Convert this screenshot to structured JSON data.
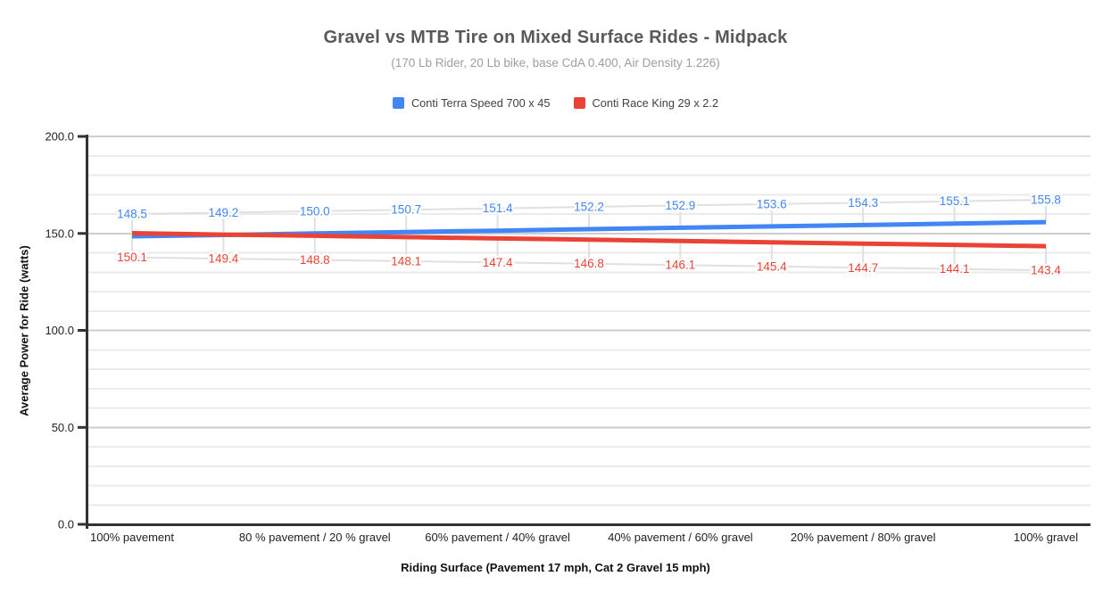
{
  "chart_data": {
    "type": "line",
    "title": "Gravel vs MTB Tire on Mixed Surface Rides - Midpack",
    "subtitle": "(170 Lb Rider, 20 Lb bike, base CdA 0.400, Air Density 1.226)",
    "xlabel": "Riding Surface (Pavement 17 mph, Cat 2 Gravel 15 mph)",
    "ylabel": "Average Power for Ride (watts)",
    "ylim": [
      0,
      200
    ],
    "y_tick_labels": [
      "0.0",
      "50.0",
      "100.0",
      "150.0",
      "200.0"
    ],
    "y_major_step": 50,
    "y_minor_step": 10,
    "grid": "horizontal-only",
    "legend_position": "top",
    "x_point_count": 11,
    "x_tick_labels": [
      "100% pavement",
      "80 % pavement / 20 % gravel",
      "60% pavement / 40% gravel",
      "40% pavement / 60% gravel",
      "20% pavement / 80% gravel",
      "100% gravel"
    ],
    "x_tick_point_indices": [
      0,
      2,
      4,
      6,
      8,
      10
    ],
    "series": [
      {
        "name": "Conti Terra Speed 700 x 45",
        "color": "#4285f4",
        "label_side": "above",
        "values": [
          148.5,
          149.2,
          150.0,
          150.7,
          151.4,
          152.2,
          152.9,
          153.6,
          154.3,
          155.1,
          155.8
        ]
      },
      {
        "name": "Conti Race King 29 x 2.2",
        "color": "#ea4335",
        "label_side": "below",
        "values": [
          150.1,
          149.4,
          148.8,
          148.1,
          147.4,
          146.8,
          146.1,
          145.4,
          144.7,
          144.1,
          143.4
        ]
      }
    ],
    "colors": {
      "minor_gridline": "#ebebeb",
      "major_gridline": "#cdcdcd",
      "label_leader": "#e0e0e0",
      "axis_line": "#333333",
      "tick_text": "#222222"
    }
  }
}
